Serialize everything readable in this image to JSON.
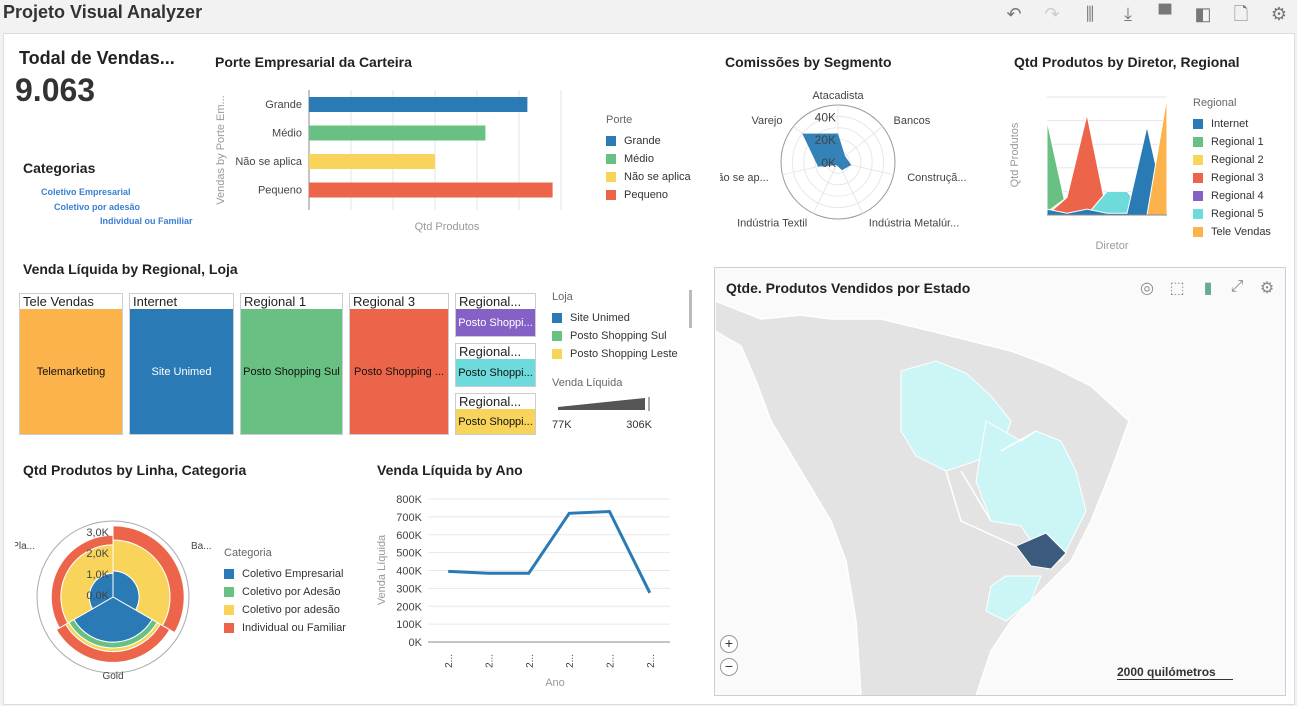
{
  "app": {
    "title": "Projeto Visual Analyzer"
  },
  "toolbar": [
    {
      "name": "undo-icon",
      "glyph": "↶"
    },
    {
      "name": "redo-icon",
      "glyph": "↷"
    },
    {
      "name": "add-visualization-icon",
      "glyph": "⫼"
    },
    {
      "name": "export-icon",
      "glyph": "⤓"
    },
    {
      "name": "data-elements-icon",
      "glyph": "▀"
    },
    {
      "name": "panel-toggle-icon",
      "glyph": "◧"
    },
    {
      "name": "page-icon",
      "glyph": "🗋"
    },
    {
      "name": "settings-icon",
      "glyph": "⚙"
    }
  ],
  "kpi": {
    "title": "Todal de Vendas...",
    "value": "9.063"
  },
  "tagcloud": {
    "title": "Categorias",
    "tags": [
      "Coletivo Empresarial",
      "Coletivo por adesão",
      "Individual ou Familiar"
    ]
  },
  "colors": {
    "blue": "#2a7bb5",
    "green": "#68c182",
    "yellow": "#f8d55a",
    "red": "#ec654a",
    "purple": "#8561c5",
    "cyan": "#6ddbdb",
    "orange": "#fcb34b"
  },
  "chart_data": [
    {
      "type": "bar",
      "title": "Porte Empresarial da Carteira",
      "xlabel": "Qtd Produtos",
      "ylabel": "Vendas by Porte Em...",
      "categories": [
        "Grande",
        "Médio",
        "Não se aplica",
        "Pequeno"
      ],
      "values": [
        5.2,
        4.2,
        3.0,
        5.8
      ],
      "xlim": [
        0,
        6
      ],
      "legend_title": "Porte",
      "legend": [
        "Grande",
        "Médio",
        "Não se aplica",
        "Pequeno"
      ]
    },
    {
      "type": "radar",
      "title": "Comissões by Segmento",
      "categories": [
        "Atacadista",
        "Bancos",
        "Construçã...",
        "Indústria Metalúr...",
        "Indústria Textil",
        "Não se ap...",
        "Varejo"
      ],
      "values": [
        25000,
        8000,
        12000,
        8000,
        3000,
        18000,
        40000
      ],
      "ticks": [
        "0K",
        "20K",
        "40K"
      ],
      "rmax": 50000
    },
    {
      "type": "area",
      "title": "Qtd Produtos by Diretor, Regional",
      "xlabel": "Diretor",
      "ylabel": "Qtd Produtos",
      "legend_title": "Regional",
      "ylim": [
        0,
        20
      ],
      "series": [
        {
          "name": "Regional 1",
          "values": [
            16,
            0.5,
            1.5,
            0.3,
            0.3,
            0,
            0
          ]
        },
        {
          "name": "Regional 2",
          "values": [
            0.5,
            3,
            0.5,
            0.3,
            0,
            0,
            0
          ]
        },
        {
          "name": "Regional 3",
          "values": [
            0,
            3,
            17,
            0.3,
            0,
            0,
            0
          ]
        },
        {
          "name": "Regional 4",
          "values": [
            0,
            0,
            0,
            4,
            0,
            0,
            0
          ]
        },
        {
          "name": "Regional 5",
          "values": [
            0,
            0,
            0,
            4,
            4,
            0,
            0
          ]
        },
        {
          "name": "Internet",
          "values": [
            1,
            0.3,
            1,
            0.3,
            0.3,
            15,
            0
          ]
        },
        {
          "name": "Tele Vendas",
          "values": [
            0,
            0,
            0,
            0,
            0,
            0,
            20
          ]
        }
      ]
    },
    {
      "type": "treemap",
      "title": "Venda Líquida by Regional, Loja",
      "legend_title": "Loja",
      "legend": [
        "Site Unimed",
        "Posto Shopping Sul",
        "Posto Shopping Leste"
      ],
      "size_legend": {
        "title": "Venda Líquida",
        "min": "77K",
        "max": "306K"
      },
      "tiles": [
        {
          "group": "Tele Vendas",
          "label": "Telemarketing",
          "color": "#fcb34b"
        },
        {
          "group": "Internet",
          "label": "Site Unimed",
          "color": "#2a7bb5"
        },
        {
          "group": "Regional 1",
          "label": "Posto Shopping Sul",
          "color": "#68c182"
        },
        {
          "group": "Regional 3",
          "label": "Posto Shopping ...",
          "color": "#ec654a"
        },
        {
          "group": "Regional...",
          "label": "Posto Shoppi...",
          "color": "#8561c5"
        },
        {
          "group": "Regional...",
          "label": "Posto Shoppi...",
          "color": "#6ddbdb"
        },
        {
          "group": "Regional...",
          "label": "Posto Shoppi...",
          "color": "#f8d55a"
        }
      ]
    },
    {
      "type": "polar-stacked-bar",
      "title": "Qtd Produtos by Linha, Categoria",
      "legend_title": "Categoria",
      "legend": [
        "Coletivo Empresarial",
        "Coletivo por Adesão",
        "Coletivo por adesão",
        "Individual ou Familiar"
      ],
      "categories": [
        "Ba...",
        "Gold",
        "Pla..."
      ],
      "ticks": [
        "0,0K",
        "1,0K",
        "2,0K",
        "3,0K"
      ],
      "rmax": 3200,
      "series": [
        {
          "name": "Coletivo Empresarial",
          "values": [
            1100,
            1900,
            1000
          ]
        },
        {
          "name": "Coletivo por Adesão",
          "values": [
            0,
            250,
            0
          ]
        },
        {
          "name": "Coletivo por adesão",
          "values": [
            1300,
            150,
            1200
          ]
        },
        {
          "name": "Individual ou Familiar",
          "values": [
            600,
            450,
            400
          ]
        }
      ]
    },
    {
      "type": "line",
      "title": "Venda Líquida by Ano",
      "xlabel": "Ano",
      "ylabel": "Venda Líquida",
      "x": [
        "2...",
        "2...",
        "2...",
        "2...",
        "2...",
        "2..."
      ],
      "values": [
        395000,
        385000,
        385000,
        720000,
        730000,
        275000
      ],
      "ylim": [
        0,
        800000
      ],
      "yticks": [
        "0K",
        "100K",
        "200K",
        "300K",
        "400K",
        "500K",
        "600K",
        "700K",
        "800K"
      ]
    }
  ],
  "map": {
    "title": "Qtde. Produtos Vendidos por Estado",
    "scale": "2000 quilómetros",
    "zoom_in": "+",
    "zoom_out": "−"
  }
}
